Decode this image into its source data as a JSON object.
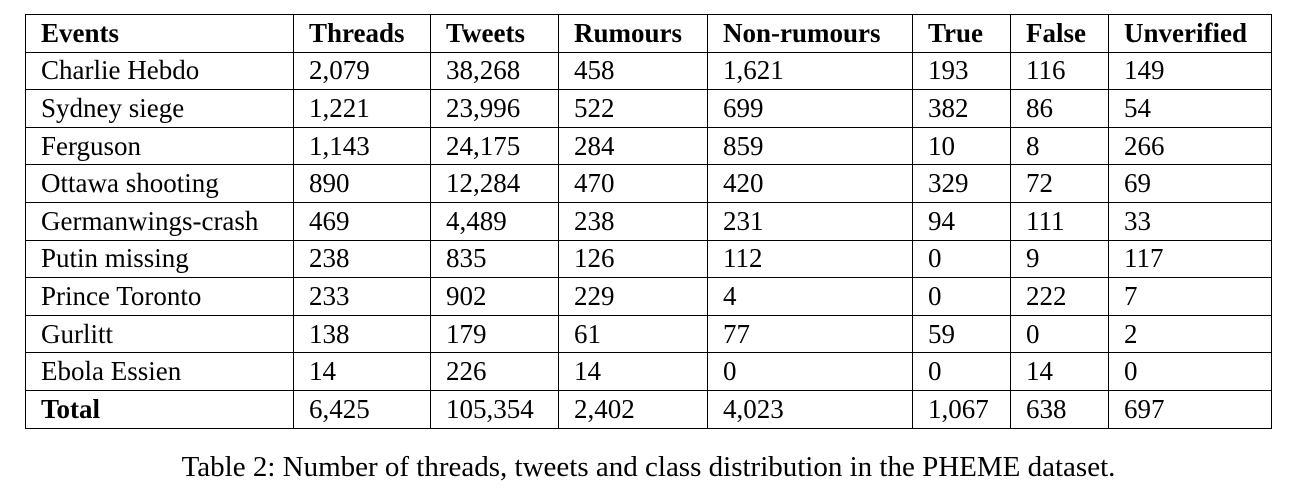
{
  "table": {
    "headers": [
      "Events",
      "Threads",
      "Tweets",
      "Rumours",
      "Non-rumours",
      "True",
      "False",
      "Unverified"
    ],
    "rows": [
      [
        "Charlie Hebdo",
        "2,079",
        "38,268",
        "458",
        "1,621",
        "193",
        "116",
        "149"
      ],
      [
        "Sydney siege",
        "1,221",
        "23,996",
        "522",
        "699",
        "382",
        "86",
        "54"
      ],
      [
        "Ferguson",
        "1,143",
        "24,175",
        "284",
        "859",
        "10",
        "8",
        "266"
      ],
      [
        "Ottawa shooting",
        "890",
        "12,284",
        "470",
        "420",
        "329",
        "72",
        "69"
      ],
      [
        "Germanwings-crash",
        "469",
        "4,489",
        "238",
        "231",
        "94",
        "111",
        "33"
      ],
      [
        "Putin missing",
        "238",
        "835",
        "126",
        "112",
        "0",
        "9",
        "117"
      ],
      [
        "Prince Toronto",
        "233",
        "902",
        "229",
        "4",
        "0",
        "222",
        "7"
      ],
      [
        "Gurlitt",
        "138",
        "179",
        "61",
        "77",
        "59",
        "0",
        "2"
      ],
      [
        "Ebola Essien",
        "14",
        "226",
        "14",
        "0",
        "0",
        "14",
        "0"
      ]
    ],
    "total": [
      "Total",
      "6,425",
      "105,354",
      "2,402",
      "4,023",
      "1,067",
      "638",
      "697"
    ]
  },
  "caption": "Table 2: Number of threads, tweets and class distribution in the PHEME dataset."
}
